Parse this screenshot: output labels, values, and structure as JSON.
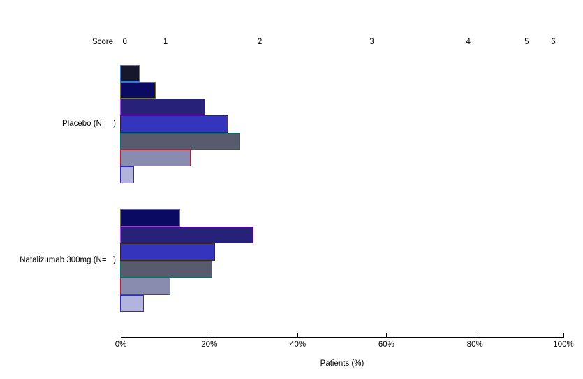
{
  "chart_data": {
    "type": "bar",
    "orientation": "horizontal",
    "xlabel": "Patients (%)",
    "xlim": [
      0,
      100
    ],
    "grid": false,
    "x_axis": {
      "ticks": [
        {
          "label": "0%",
          "value": 0
        },
        {
          "label": "20%",
          "value": 20
        },
        {
          "label": "40%",
          "value": 40
        },
        {
          "label": "60%",
          "value": 60
        },
        {
          "label": "80%",
          "value": 80
        },
        {
          "label": "100%",
          "value": 100
        }
      ]
    },
    "score_legend": {
      "title": "Score",
      "entries": [
        {
          "score": "0",
          "position_pct": 0.9
        },
        {
          "score": "1",
          "position_pct": 10.1
        },
        {
          "score": "2",
          "position_pct": 31.4
        },
        {
          "score": "3",
          "position_pct": 56.7
        },
        {
          "score": "4",
          "position_pct": 78.5
        },
        {
          "score": "5",
          "position_pct": 91.7
        },
        {
          "score": "6",
          "position_pct": 97.7
        }
      ]
    },
    "series_colors": [
      {
        "score": "0",
        "fill": "#16162d",
        "border": "#2e7fd9"
      },
      {
        "score": "1",
        "fill": "#0a0a63",
        "border": "#74752c"
      },
      {
        "score": "2",
        "fill": "#272179",
        "border": "#a64ce0"
      },
      {
        "score": "3",
        "fill": "#3434bc",
        "border": "#3f2817"
      },
      {
        "score": "4",
        "fill": "#585a6e",
        "border": "#0d6c63"
      },
      {
        "score": "5",
        "fill": "#898cae",
        "border": "#ae2032"
      },
      {
        "score": "6",
        "fill": "#b3b4de",
        "border": "#2b2bd5"
      }
    ],
    "groups": [
      {
        "label": "Placebo (N=   )",
        "bars": [
          {
            "score": "0",
            "value": 4.1
          },
          {
            "score": "1",
            "value": 7.7
          },
          {
            "score": "2",
            "value": 18.9
          },
          {
            "score": "3",
            "value": 24.0
          },
          {
            "score": "4",
            "value": 26.8
          },
          {
            "score": "5",
            "value": 15.5
          },
          {
            "score": "6",
            "value": 2.7
          }
        ]
      },
      {
        "label": "Natalizumab 300mg (N=   )",
        "bars": [
          {
            "score": "1",
            "value": 13.1
          },
          {
            "score": "2",
            "value": 29.8
          },
          {
            "score": "3",
            "value": 21.0
          },
          {
            "score": "4",
            "value": 20.4
          },
          {
            "score": "5",
            "value": 10.9
          },
          {
            "score": "6",
            "value": 4.9
          }
        ]
      }
    ]
  }
}
